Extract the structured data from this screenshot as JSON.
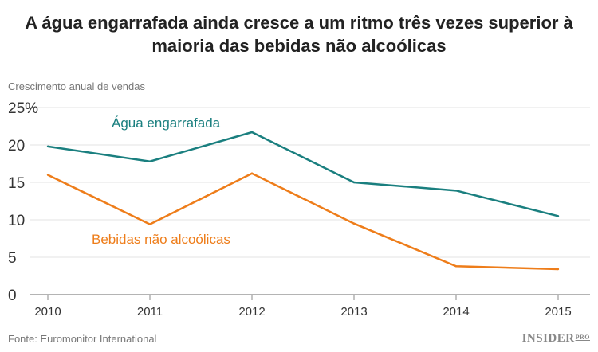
{
  "chart_data": {
    "type": "line",
    "title": "A água engarrafada ainda cresce a um ritmo três vezes superior à maioria das bebidas não alcoólicas",
    "ylabel": "Crescimento anual de vendas",
    "xlabel": "",
    "x": [
      2010,
      2011,
      2012,
      2013,
      2014,
      2015
    ],
    "x_tick_labels": [
      "2010",
      "2011",
      "2012",
      "2013",
      "2014",
      "2015"
    ],
    "y_tick_labels": [
      "0",
      "5",
      "10",
      "15",
      "20",
      "25%"
    ],
    "ylim": [
      0,
      25
    ],
    "grid": "horizontal",
    "series": [
      {
        "name": "Água engarrafada",
        "color": "#1a7f7f",
        "values": [
          19.8,
          17.8,
          21.7,
          15.0,
          13.9,
          10.5
        ]
      },
      {
        "name": "Bebidas não alcoólicas",
        "color": "#ee7d1a",
        "values": [
          16.0,
          9.4,
          16.2,
          9.5,
          3.8,
          3.4
        ]
      }
    ]
  },
  "source": "Fonte: Euromonitor International",
  "logo": {
    "main": "INSIDER",
    "sub": "PRO"
  }
}
